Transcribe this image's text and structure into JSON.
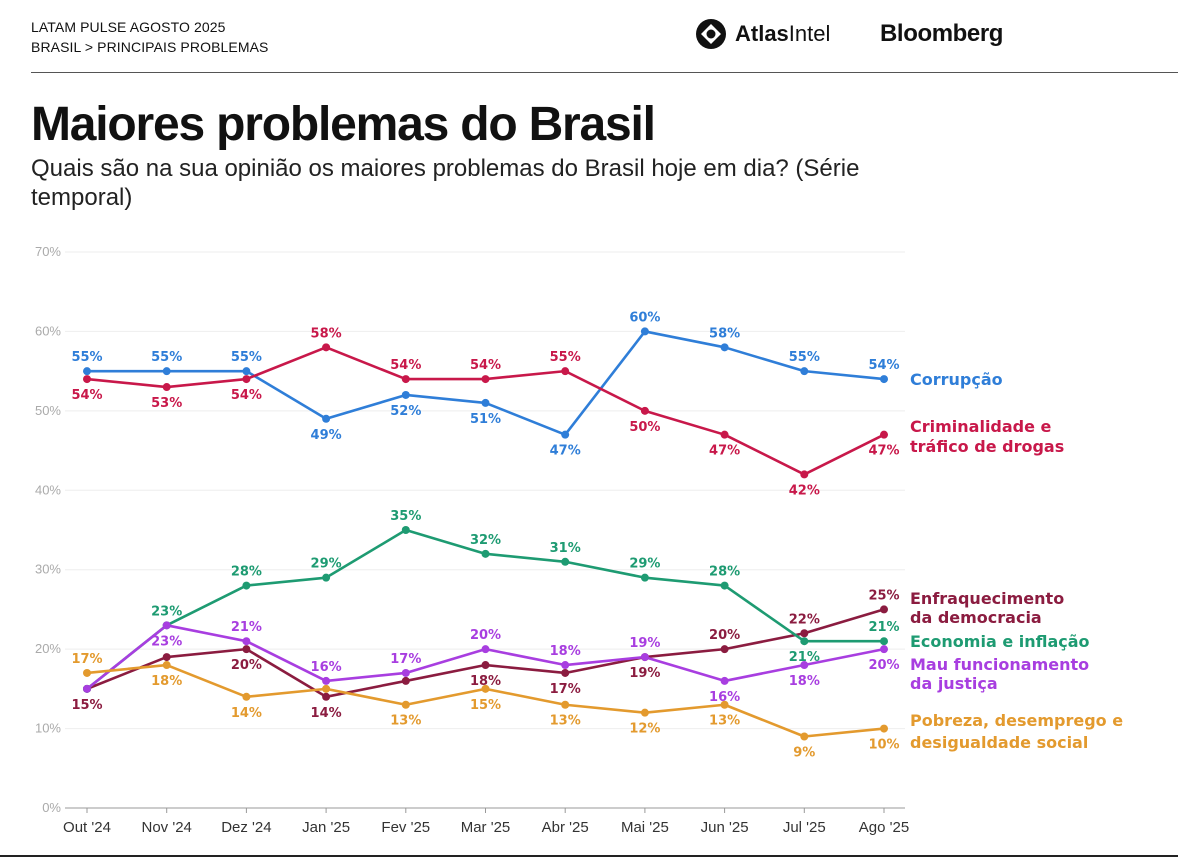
{
  "header": {
    "line1": "LATAM PULSE AGOSTO 2025",
    "line2": "BRASIL > PRINCIPAIS PROBLEMAS",
    "atlas_logo_bold": "Atlas",
    "atlas_logo_regular": "Intel",
    "bloomberg_logo": "Bloomberg"
  },
  "chart_data": {
    "type": "line",
    "title": "Maiores problemas do Brasil",
    "subtitle": "Quais são na sua opinião os maiores problemas do Brasil hoje em dia? (Série temporal)",
    "xlabel": "",
    "ylabel": "",
    "ylim": [
      0,
      70
    ],
    "yticks": [
      0,
      10,
      20,
      30,
      40,
      50,
      60,
      70
    ],
    "ytick_labels": [
      "0%",
      "10%",
      "20%",
      "30%",
      "40%",
      "50%",
      "60%",
      "70%"
    ],
    "categories": [
      "Out '24",
      "Nov '24",
      "Dez '24",
      "Jan '25",
      "Fev '25",
      "Mar '25",
      "Abr '25",
      "Mai '25",
      "Jun '25",
      "Jul '25",
      "Ago '25"
    ],
    "grid": true,
    "series": [
      {
        "name": "Corrupção",
        "label_lines": [
          "Corrupção"
        ],
        "color": "#2f7ed8",
        "values": [
          55,
          55,
          55,
          49,
          52,
          51,
          47,
          60,
          58,
          55,
          54
        ],
        "label_pos": [
          "above",
          "above",
          "above",
          "below",
          "below",
          "below",
          "below",
          "above",
          "above",
          "above",
          "above"
        ]
      },
      {
        "name": "Criminalidade e tráfico de drogas",
        "label_lines": [
          "Criminalidade e",
          "tráfico de drogas"
        ],
        "color": "#c8184a",
        "values": [
          54,
          53,
          54,
          58,
          54,
          54,
          55,
          50,
          47,
          42,
          47
        ],
        "label_pos": [
          "below",
          "below",
          "below",
          "above",
          "above",
          "above",
          "above",
          "below",
          "below",
          "below",
          "below"
        ]
      },
      {
        "name": "Enfraquecimento da democracia",
        "label_lines": [
          "Enfraquecimento",
          "da democracia"
        ],
        "color": "#8b1c40",
        "values": [
          15,
          19,
          20,
          14,
          16,
          18,
          17,
          19,
          20,
          22,
          25
        ],
        "label_pos": [
          "below",
          "none",
          "below",
          "below",
          "none",
          "below",
          "below",
          "below",
          "above",
          "above",
          "above"
        ]
      },
      {
        "name": "Economia e inflação",
        "label_lines": [
          "Economia e inflação"
        ],
        "color": "#1e9b72",
        "values": [
          15,
          23,
          28,
          29,
          35,
          32,
          31,
          29,
          28,
          21,
          21
        ],
        "label_pos": [
          "none",
          "above",
          "above",
          "above",
          "above",
          "above",
          "above",
          "above",
          "above",
          "below",
          "above"
        ]
      },
      {
        "name": "Mau funcionamento da justiça",
        "label_lines": [
          "Mau funcionamento",
          "da justiça"
        ],
        "color": "#a83ee0",
        "values": [
          15,
          23,
          21,
          16,
          17,
          20,
          18,
          19,
          16,
          18,
          20
        ],
        "label_pos": [
          "none",
          "below",
          "above",
          "above",
          "above",
          "above",
          "above",
          "above",
          "below",
          "below",
          "below"
        ]
      },
      {
        "name": "Pobreza, desemprego e desigualdade social",
        "label_lines": [
          "Pobreza, desemprego e",
          "desigualdade social"
        ],
        "color": "#e39a2e",
        "values": [
          17,
          18,
          14,
          15,
          13,
          15,
          13,
          12,
          13,
          9,
          10
        ],
        "label_pos": [
          "above",
          "below",
          "below",
          "none",
          "below",
          "below",
          "below",
          "below",
          "below",
          "below",
          "below"
        ]
      }
    ]
  }
}
